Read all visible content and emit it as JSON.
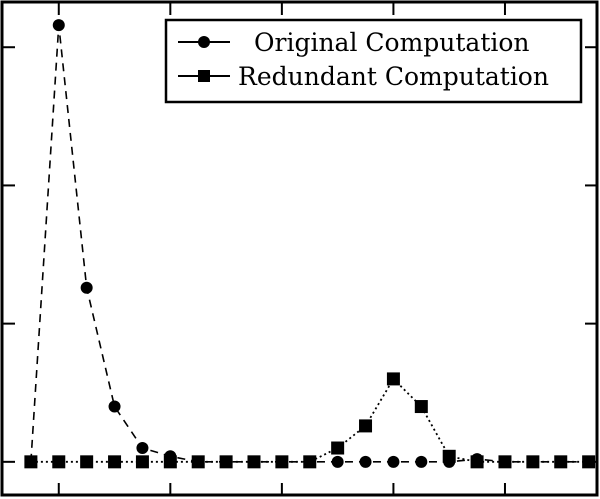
{
  "chart_data": {
    "type": "line",
    "title": "",
    "xlabel": "",
    "ylabel": "",
    "xlim": [
      -1,
      20.3
    ],
    "ylim": [
      -1.2,
      16.6
    ],
    "xticks": [
      1,
      5,
      9,
      13,
      17
    ],
    "yticks": [
      0,
      5,
      10,
      15
    ],
    "legend_position": "top-right",
    "x": [
      0,
      1,
      2,
      3,
      4,
      5,
      6,
      7,
      8,
      9,
      10,
      11,
      12,
      13,
      14,
      15,
      16,
      17,
      18,
      19,
      20
    ],
    "series": [
      {
        "name": "Original Computation",
        "marker": "circle",
        "values": [
          0,
          15.8,
          6.3,
          2.0,
          0.5,
          0.2,
          0,
          0,
          0,
          0,
          0,
          0,
          0,
          0,
          0,
          0,
          0.1,
          0,
          0,
          0,
          0
        ]
      },
      {
        "name": "Redundant Computation",
        "marker": "square",
        "values": [
          0,
          0,
          0,
          0,
          0,
          0,
          0,
          0,
          0,
          0,
          0,
          0.5,
          1.3,
          3.0,
          2.0,
          0.2,
          0,
          0,
          0,
          0,
          0
        ]
      }
    ],
    "colors": {
      "line": "#000000",
      "background": "#ffffff"
    }
  }
}
